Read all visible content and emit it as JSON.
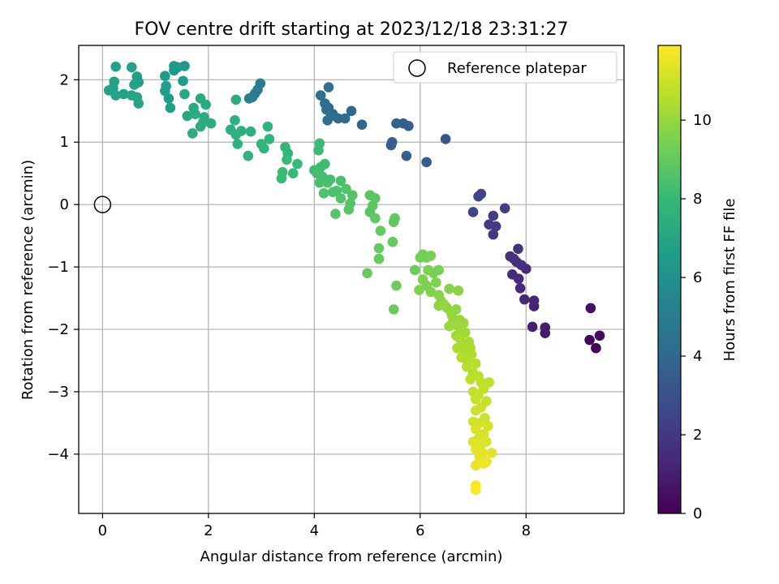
{
  "chart_data": {
    "type": "scatter",
    "title": "FOV centre drift starting at 2023/12/18 23:31:27",
    "xlabel": "Angular distance from reference (arcmin)",
    "ylabel": "Rotation from reference (arcmin)",
    "xlim": [
      -0.45,
      9.85
    ],
    "ylim": [
      -4.95,
      2.55
    ],
    "xticks": [
      0,
      2,
      4,
      6,
      8
    ],
    "xtick_labels": [
      "0",
      "2",
      "4",
      "6",
      "8"
    ],
    "yticks": [
      2,
      1,
      0,
      -1,
      -2,
      -3,
      -4
    ],
    "ytick_labels": [
      "2",
      "1",
      "0",
      "−1",
      "−2",
      "−3",
      "−4"
    ],
    "grid": true,
    "legend": {
      "placement": "top-right",
      "entries": [
        "Reference platepar"
      ]
    },
    "reference_point": {
      "x": 0,
      "y": 0,
      "marker": "open-circle",
      "color": "#000000"
    },
    "colorbar": {
      "label": "Hours from first FF file",
      "min": 0,
      "max": 11.9,
      "ticks": [
        0,
        2,
        4,
        6,
        8,
        10
      ],
      "tick_labels": [
        "0",
        "2",
        "4",
        "6",
        "8",
        "10"
      ],
      "colormap": "viridis"
    },
    "colormap_stops": [
      "#440154",
      "#482878",
      "#3e4989",
      "#31688e",
      "#26828e",
      "#1f9e89",
      "#35b779",
      "#6ece58",
      "#b5de2b",
      "#fde725"
    ],
    "series": [
      {
        "points": [
          [
            9.32,
            -2.3,
            0.1
          ],
          [
            9.2,
            -2.17,
            0.2
          ],
          [
            9.39,
            -2.1,
            0.3
          ],
          [
            9.22,
            -1.66,
            0.5
          ],
          [
            8.36,
            -2.06,
            0.8
          ],
          [
            8.36,
            -1.97,
            0.9
          ],
          [
            8.12,
            -1.96,
            1.0
          ],
          [
            8.15,
            -1.63,
            1.1
          ],
          [
            8.15,
            -1.54,
            1.2
          ],
          [
            7.97,
            -1.52,
            1.3
          ],
          [
            7.89,
            -1.34,
            1.4
          ],
          [
            7.86,
            -1.19,
            1.4
          ],
          [
            7.74,
            -1.12,
            1.5
          ],
          [
            8.0,
            -1.03,
            1.5
          ],
          [
            7.91,
            -0.97,
            1.6
          ],
          [
            7.82,
            -0.92,
            1.6
          ],
          [
            7.7,
            -0.83,
            1.7
          ],
          [
            7.77,
            -0.87,
            1.7
          ],
          [
            7.85,
            -0.71,
            1.8
          ],
          [
            7.38,
            -0.48,
            2.0
          ],
          [
            7.3,
            -0.32,
            2.1
          ],
          [
            7.43,
            -0.35,
            2.1
          ],
          [
            7.38,
            -0.18,
            2.2
          ],
          [
            7.15,
            0.17,
            2.4
          ],
          [
            7.1,
            0.13,
            2.4
          ],
          [
            7.0,
            -0.12,
            2.5
          ],
          [
            7.6,
            -0.06,
            2.3
          ],
          [
            6.48,
            1.05,
            3.2
          ],
          [
            6.12,
            0.68,
            3.4
          ],
          [
            5.74,
            0.78,
            3.5
          ],
          [
            5.78,
            1.26,
            3.6
          ],
          [
            5.68,
            1.3,
            3.6
          ],
          [
            5.55,
            1.3,
            3.7
          ],
          [
            5.47,
            1.0,
            3.6
          ],
          [
            5.45,
            0.95,
            3.6
          ],
          [
            4.9,
            1.28,
            3.9
          ],
          [
            4.7,
            1.5,
            4.0
          ],
          [
            4.58,
            1.38,
            4.1
          ],
          [
            4.45,
            1.38,
            4.1
          ],
          [
            4.35,
            1.45,
            4.2
          ],
          [
            4.27,
            1.55,
            4.2
          ],
          [
            4.32,
            1.42,
            4.3
          ],
          [
            4.23,
            1.52,
            4.3
          ],
          [
            4.2,
            1.62,
            4.3
          ],
          [
            4.25,
            1.35,
            4.3
          ],
          [
            4.12,
            1.75,
            4.4
          ],
          [
            4.27,
            1.88,
            4.4
          ],
          [
            2.98,
            1.94,
            5.0
          ],
          [
            2.93,
            1.84,
            5.0
          ],
          [
            2.83,
            1.72,
            5.1
          ],
          [
            2.88,
            1.78,
            5.1
          ],
          [
            2.77,
            1.7,
            5.2
          ],
          [
            1.55,
            2.22,
            6.3
          ],
          [
            1.42,
            2.2,
            6.4
          ],
          [
            1.35,
            2.22,
            6.4
          ],
          [
            1.35,
            2.15,
            6.4
          ],
          [
            1.52,
            1.98,
            6.5
          ],
          [
            1.18,
            2.06,
            6.5
          ],
          [
            1.2,
            1.9,
            6.6
          ],
          [
            1.18,
            1.82,
            6.6
          ],
          [
            1.25,
            1.7,
            6.6
          ],
          [
            1.28,
            1.55,
            6.7
          ],
          [
            0.65,
            2.05,
            6.7
          ],
          [
            0.68,
            1.96,
            6.7
          ],
          [
            0.6,
            1.92,
            6.8
          ],
          [
            0.55,
            2.2,
            6.8
          ],
          [
            0.25,
            2.21,
            6.8
          ],
          [
            0.22,
            1.97,
            6.9
          ],
          [
            0.12,
            1.83,
            6.9
          ],
          [
            0.2,
            1.87,
            6.9
          ],
          [
            0.25,
            1.75,
            6.9
          ],
          [
            0.4,
            1.77,
            6.9
          ],
          [
            0.55,
            1.75,
            7.0
          ],
          [
            0.68,
            1.62,
            7.0
          ],
          [
            0.65,
            1.72,
            7.0
          ],
          [
            1.55,
            1.77,
            7.1
          ],
          [
            1.6,
            1.42,
            7.2
          ],
          [
            1.72,
            1.55,
            7.2
          ],
          [
            1.85,
            1.7,
            7.2
          ],
          [
            1.95,
            1.6,
            7.3
          ],
          [
            1.75,
            1.45,
            7.3
          ],
          [
            1.92,
            1.4,
            7.3
          ],
          [
            2.05,
            1.3,
            7.4
          ],
          [
            1.9,
            1.32,
            7.4
          ],
          [
            1.85,
            1.25,
            7.4
          ],
          [
            1.7,
            1.14,
            7.4
          ],
          [
            2.52,
            1.68,
            7.4
          ],
          [
            2.5,
            1.35,
            7.5
          ],
          [
            2.42,
            1.2,
            7.5
          ],
          [
            2.62,
            1.18,
            7.5
          ],
          [
            2.52,
            1.12,
            7.6
          ],
          [
            2.55,
            0.97,
            7.6
          ],
          [
            2.8,
            1.17,
            7.6
          ],
          [
            2.75,
            0.78,
            7.7
          ],
          [
            3.12,
            1.25,
            7.7
          ],
          [
            3.15,
            1.05,
            7.7
          ],
          [
            3.0,
            0.97,
            7.8
          ],
          [
            3.05,
            0.9,
            7.8
          ],
          [
            3.45,
            0.92,
            7.9
          ],
          [
            3.5,
            0.82,
            7.9
          ],
          [
            3.48,
            0.72,
            8.0
          ],
          [
            3.68,
            0.65,
            8.0
          ],
          [
            3.6,
            0.5,
            8.0
          ],
          [
            3.4,
            0.52,
            8.1
          ],
          [
            3.38,
            0.42,
            8.1
          ],
          [
            4.1,
            0.98,
            8.1
          ],
          [
            4.08,
            0.87,
            8.1
          ],
          [
            4.12,
            0.6,
            8.2
          ],
          [
            4.2,
            0.65,
            8.2
          ],
          [
            4.0,
            0.55,
            8.2
          ],
          [
            4.05,
            0.5,
            8.3
          ],
          [
            4.15,
            0.45,
            8.3
          ],
          [
            4.3,
            0.4,
            8.3
          ],
          [
            4.1,
            0.35,
            8.4
          ],
          [
            4.25,
            0.35,
            8.4
          ],
          [
            4.5,
            0.38,
            8.4
          ],
          [
            4.42,
            0.22,
            8.5
          ],
          [
            4.35,
            0.2,
            8.5
          ],
          [
            4.18,
            0.18,
            8.5
          ],
          [
            4.6,
            0.25,
            8.6
          ],
          [
            4.5,
            0.1,
            8.6
          ],
          [
            4.72,
            0.15,
            8.6
          ],
          [
            4.68,
            0.02,
            8.6
          ],
          [
            4.65,
            -0.08,
            8.7
          ],
          [
            4.4,
            -0.15,
            8.7
          ],
          [
            5.05,
            0.15,
            8.8
          ],
          [
            5.15,
            0.1,
            8.8
          ],
          [
            5.1,
            -0.02,
            8.8
          ],
          [
            5.05,
            -0.12,
            8.8
          ],
          [
            5.15,
            -0.22,
            8.9
          ],
          [
            5.52,
            -0.22,
            8.9
          ],
          [
            5.5,
            -0.28,
            8.9
          ],
          [
            5.25,
            -0.42,
            9.0
          ],
          [
            5.22,
            -0.7,
            9.0
          ],
          [
            5.22,
            -0.87,
            9.0
          ],
          [
            5.48,
            -0.6,
            9.0
          ],
          [
            5.0,
            -1.1,
            9.1
          ],
          [
            5.5,
            -1.68,
            9.1
          ],
          [
            5.55,
            -1.3,
            9.2
          ],
          [
            5.9,
            -1.05,
            9.2
          ],
          [
            6.0,
            -0.85,
            9.3
          ],
          [
            6.05,
            -0.8,
            9.3
          ],
          [
            6.12,
            -0.85,
            9.3
          ],
          [
            6.2,
            -0.82,
            9.4
          ],
          [
            6.25,
            -1.1,
            9.4
          ],
          [
            6.35,
            -1.05,
            9.4
          ],
          [
            6.15,
            -1.05,
            9.5
          ],
          [
            6.05,
            -1.2,
            9.5
          ],
          [
            6.12,
            -1.3,
            9.5
          ],
          [
            6.3,
            -1.25,
            9.6
          ],
          [
            6.2,
            -1.4,
            9.6
          ],
          [
            5.98,
            -1.37,
            9.6
          ],
          [
            6.35,
            -1.45,
            9.7
          ],
          [
            6.4,
            -1.55,
            9.7
          ],
          [
            6.55,
            -1.35,
            9.7
          ],
          [
            6.72,
            -1.38,
            9.8
          ],
          [
            6.35,
            -1.62,
            9.8
          ],
          [
            6.5,
            -1.65,
            9.8
          ],
          [
            6.45,
            -1.6,
            9.9
          ],
          [
            6.58,
            -1.72,
            9.9
          ],
          [
            6.68,
            -1.68,
            9.9
          ],
          [
            6.6,
            -1.78,
            10.0
          ],
          [
            6.75,
            -1.85,
            10.0
          ],
          [
            6.62,
            -1.88,
            10.0
          ],
          [
            6.55,
            -1.95,
            10.1
          ],
          [
            6.72,
            -1.95,
            10.1
          ],
          [
            6.82,
            -1.9,
            10.1
          ],
          [
            6.78,
            -2.05,
            10.2
          ],
          [
            6.68,
            -2.1,
            10.2
          ],
          [
            6.85,
            -2.05,
            10.2
          ],
          [
            6.75,
            -2.15,
            10.3
          ],
          [
            6.8,
            -2.25,
            10.3
          ],
          [
            6.92,
            -2.2,
            10.3
          ],
          [
            6.7,
            -2.3,
            10.4
          ],
          [
            6.85,
            -2.35,
            10.4
          ],
          [
            6.95,
            -2.3,
            10.4
          ],
          [
            6.78,
            -2.45,
            10.5
          ],
          [
            6.9,
            -2.5,
            10.5
          ],
          [
            6.97,
            -2.4,
            10.5
          ],
          [
            6.88,
            -2.6,
            10.6
          ],
          [
            7.05,
            -2.55,
            10.6
          ],
          [
            7.0,
            -2.7,
            10.6
          ],
          [
            7.1,
            -2.75,
            10.7
          ],
          [
            6.95,
            -2.8,
            10.7
          ],
          [
            7.15,
            -2.85,
            10.7
          ],
          [
            7.3,
            -2.85,
            10.8
          ],
          [
            7.2,
            -2.95,
            10.8
          ],
          [
            7.0,
            -3.0,
            10.8
          ],
          [
            7.1,
            -3.05,
            10.9
          ],
          [
            7.05,
            -3.12,
            10.9
          ],
          [
            7.25,
            -3.15,
            10.9
          ],
          [
            7.15,
            -3.25,
            11.0
          ],
          [
            7.05,
            -3.3,
            11.0
          ],
          [
            7.22,
            -3.42,
            11.0
          ],
          [
            7.12,
            -3.5,
            11.1
          ],
          [
            7.0,
            -3.48,
            11.1
          ],
          [
            7.28,
            -3.55,
            11.1
          ],
          [
            7.05,
            -3.6,
            11.2
          ],
          [
            7.2,
            -3.68,
            11.2
          ],
          [
            7.1,
            -3.75,
            11.2
          ],
          [
            7.0,
            -3.8,
            11.3
          ],
          [
            7.15,
            -3.85,
            11.3
          ],
          [
            7.25,
            -3.8,
            11.3
          ],
          [
            7.05,
            -3.92,
            11.4
          ],
          [
            7.18,
            -3.98,
            11.4
          ],
          [
            7.35,
            -3.98,
            11.4
          ],
          [
            7.12,
            -4.05,
            11.5
          ],
          [
            7.25,
            -4.12,
            11.5
          ],
          [
            7.05,
            -4.18,
            11.5
          ],
          [
            7.2,
            -4.15,
            11.6
          ],
          [
            7.05,
            -4.5,
            11.8
          ],
          [
            7.05,
            -4.57,
            11.9
          ]
        ]
      }
    ]
  }
}
